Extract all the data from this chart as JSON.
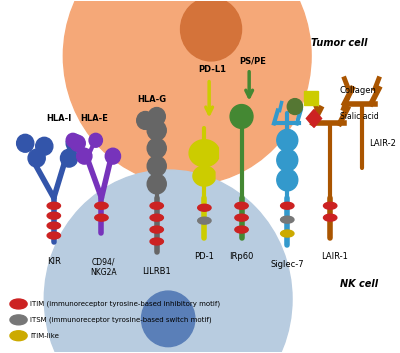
{
  "tumor_cell_label": "Tumor cell",
  "nk_cell_label": "NK cell",
  "tumor_cell_color": "#F5A878",
  "tumor_nucleus_color": "#D4733A",
  "nk_cell_color": "#B8CCE0",
  "nk_cell_color2": "#C8D8E8",
  "nk_nucleus_color": "#5A7FB8",
  "bg_color": "#FFFFFF",
  "legend": [
    {
      "label": "ITIM (immunoreceptor tyrosine-based inhibitory motif)",
      "color": "#CC2222"
    },
    {
      "label": "ITSM (immunoreceptor tyrosine-based switch motif)",
      "color": "#777777"
    },
    {
      "label": "ITIM-like",
      "color": "#CCAA00"
    }
  ],
  "kir_color": "#3355AA",
  "cd94_color": "#7733BB",
  "lilrb1_color": "#666666",
  "pd1_color": "#CCCC00",
  "irp60_color": "#448833",
  "siglec7_color": "#3399CC",
  "lair1_color": "#AA5500",
  "itim_color": "#CC2222",
  "itsm_color": "#777777",
  "itim_like_color": "#CCAA00",
  "sialic_acid_color": "#CC2222",
  "green_square_color": "#557733"
}
